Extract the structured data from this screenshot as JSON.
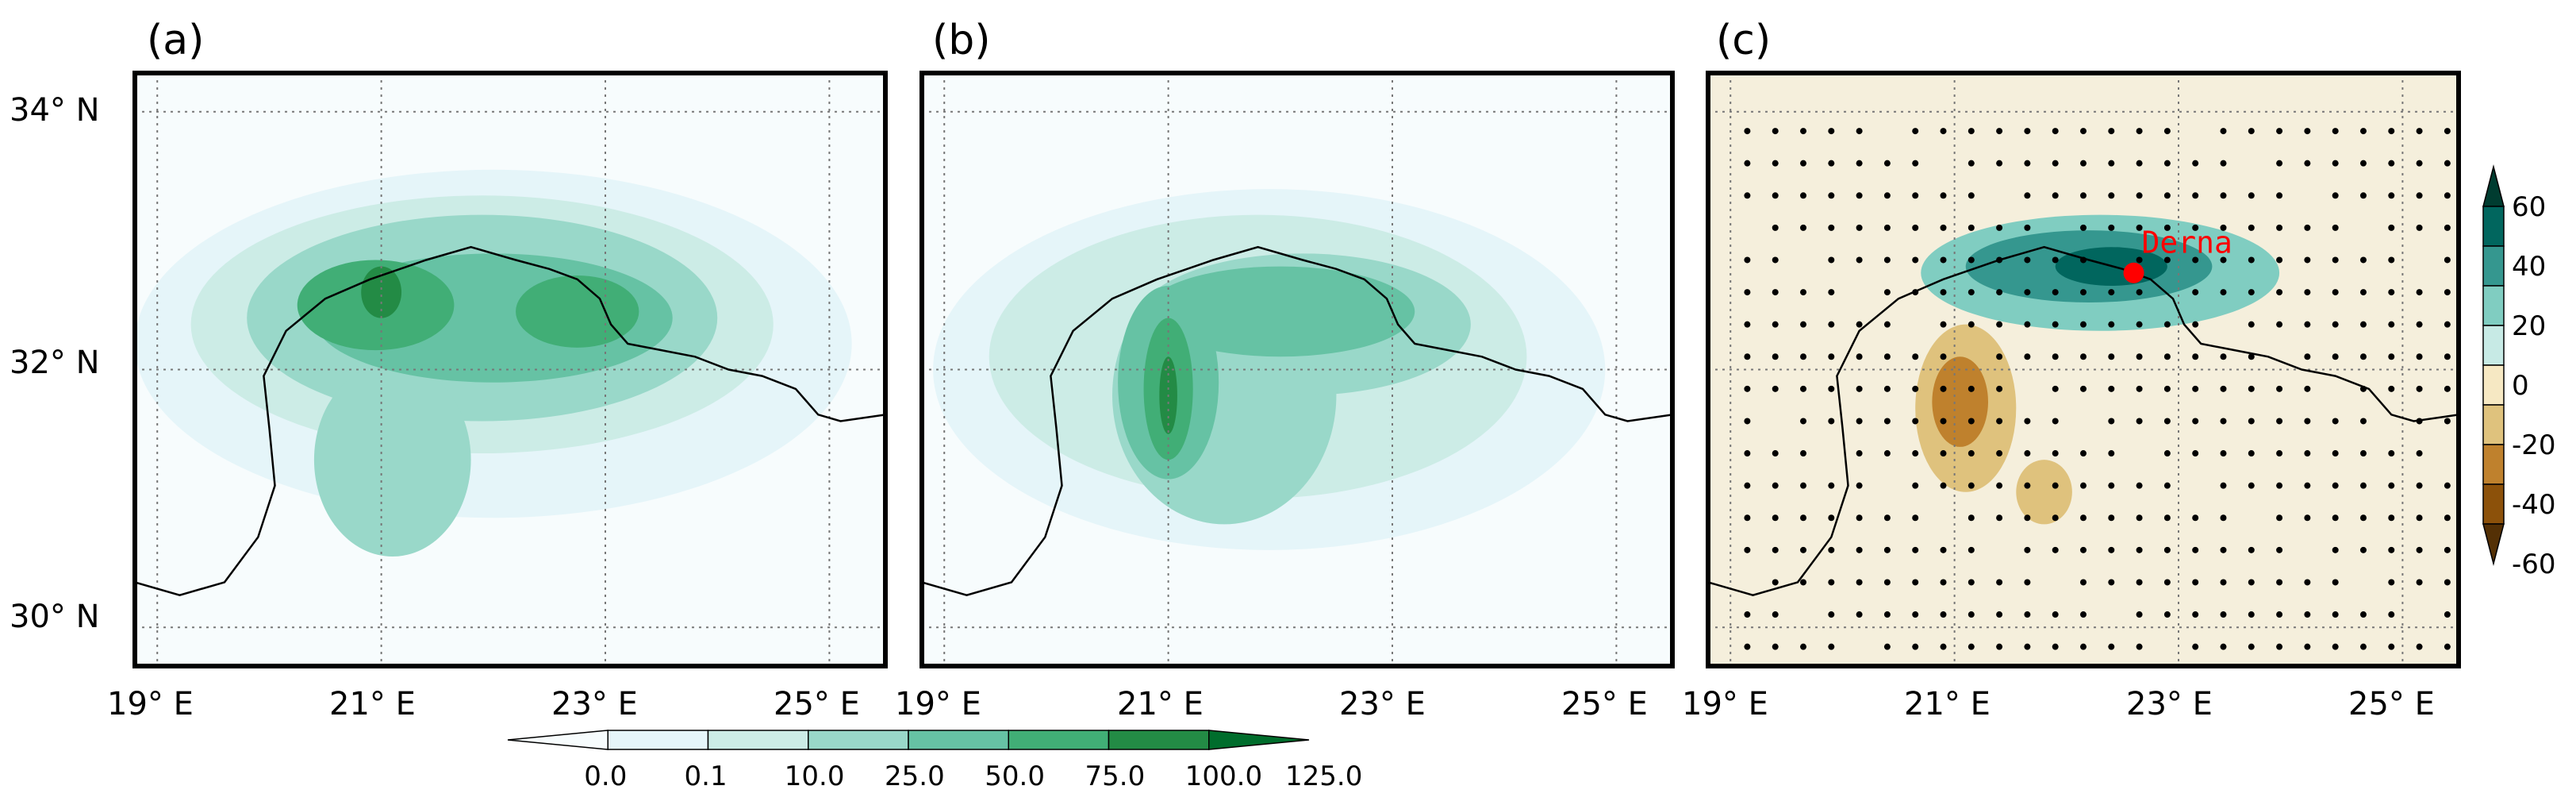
{
  "chart_data": [
    {
      "type": "heatmap",
      "panel_label": "(a)",
      "xticks": [
        "19° E",
        "21° E",
        "23° E",
        "25° E"
      ],
      "yticks": [
        "34° N",
        "32° N",
        "30° N"
      ],
      "xlim": [
        18.8,
        25.5
      ],
      "ylim": [
        29.7,
        34.3
      ],
      "grid": true,
      "coastline": true,
      "fields": [
        {
          "level": 0.1,
          "cx": 22.0,
          "cy": 32.2,
          "rx": 3.2,
          "ry": 1.35
        },
        {
          "level": 10,
          "cx": 21.9,
          "cy": 32.35,
          "rx": 2.6,
          "ry": 1.0
        },
        {
          "level": 25,
          "cx": 21.9,
          "cy": 32.4,
          "rx": 2.1,
          "ry": 0.8
        },
        {
          "level": 25,
          "cx": 21.1,
          "cy": 31.3,
          "rx": 0.7,
          "ry": 0.75
        },
        {
          "level": 50,
          "cx": 22.0,
          "cy": 32.4,
          "rx": 1.6,
          "ry": 0.5
        },
        {
          "level": 75,
          "cx": 20.95,
          "cy": 32.5,
          "rx": 0.7,
          "ry": 0.35
        },
        {
          "level": 75,
          "cx": 22.75,
          "cy": 32.45,
          "rx": 0.55,
          "ry": 0.28
        },
        {
          "level": 100,
          "cx": 21.0,
          "cy": 32.6,
          "rx": 0.18,
          "ry": 0.2
        }
      ]
    },
    {
      "type": "heatmap",
      "panel_label": "(b)",
      "xticks": [
        "19° E",
        "21° E",
        "23° E",
        "25° E"
      ],
      "yticks": [],
      "xlim": [
        18.8,
        25.5
      ],
      "ylim": [
        29.7,
        34.3
      ],
      "grid": true,
      "coastline": true,
      "fields": [
        {
          "level": 0.1,
          "cx": 21.9,
          "cy": 32.0,
          "rx": 3.0,
          "ry": 1.4
        },
        {
          "level": 10,
          "cx": 21.8,
          "cy": 32.1,
          "rx": 2.4,
          "ry": 1.1
        },
        {
          "level": 25,
          "cx": 21.5,
          "cy": 31.8,
          "rx": 1.0,
          "ry": 1.0
        },
        {
          "level": 25,
          "cx": 22.2,
          "cy": 32.35,
          "rx": 1.5,
          "ry": 0.55
        },
        {
          "level": 50,
          "cx": 21.0,
          "cy": 31.9,
          "rx": 0.45,
          "ry": 0.75
        },
        {
          "level": 50,
          "cx": 22.0,
          "cy": 32.45,
          "rx": 1.2,
          "ry": 0.35
        },
        {
          "level": 75,
          "cx": 21.0,
          "cy": 31.85,
          "rx": 0.22,
          "ry": 0.55
        },
        {
          "level": 100,
          "cx": 21.0,
          "cy": 31.8,
          "rx": 0.08,
          "ry": 0.3
        }
      ]
    },
    {
      "type": "heatmap",
      "panel_label": "(c)",
      "xticks": [
        "19° E",
        "21° E",
        "23° E",
        "25° E"
      ],
      "yticks": [],
      "xlim": [
        18.8,
        25.5
      ],
      "ylim": [
        29.7,
        34.3
      ],
      "grid": true,
      "coastline": true,
      "stippling": true,
      "annotation": {
        "text": "Derna",
        "lon": 22.6,
        "lat": 32.75
      },
      "fields": [
        {
          "level": 20,
          "cx": 22.3,
          "cy": 32.75,
          "rx": 1.6,
          "ry": 0.45
        },
        {
          "level": 40,
          "cx": 22.2,
          "cy": 32.8,
          "rx": 1.1,
          "ry": 0.28
        },
        {
          "level": 60,
          "cx": 22.4,
          "cy": 32.8,
          "rx": 0.5,
          "ry": 0.15
        },
        {
          "level": -20,
          "cx": 21.1,
          "cy": 31.7,
          "rx": 0.45,
          "ry": 0.65
        },
        {
          "level": -40,
          "cx": 21.05,
          "cy": 31.75,
          "rx": 0.25,
          "ry": 0.35
        },
        {
          "level": -20,
          "cx": 21.8,
          "cy": 31.05,
          "rx": 0.25,
          "ry": 0.25
        }
      ]
    }
  ],
  "colorbar_bottom": {
    "labels": [
      "0.0",
      "0.1",
      "10.0",
      "25.0",
      "50.0",
      "75.0",
      "100.0",
      "125.0"
    ],
    "colors": [
      "#f7fcfd",
      "#e5f5f9",
      "#ccece6",
      "#99d8c9",
      "#66c2a4",
      "#41ae76",
      "#238b45",
      "#006d2c"
    ]
  },
  "colorbar_right": {
    "labels": [
      "60",
      "40",
      "20",
      "0",
      "-20",
      "-40",
      "-60"
    ],
    "colors": [
      "#003c30",
      "#01665e",
      "#35978f",
      "#80cdc1",
      "#c7eae5",
      "#f6e8c3",
      "#dfc27d",
      "#bf812d",
      "#8c510a",
      "#543005"
    ]
  }
}
